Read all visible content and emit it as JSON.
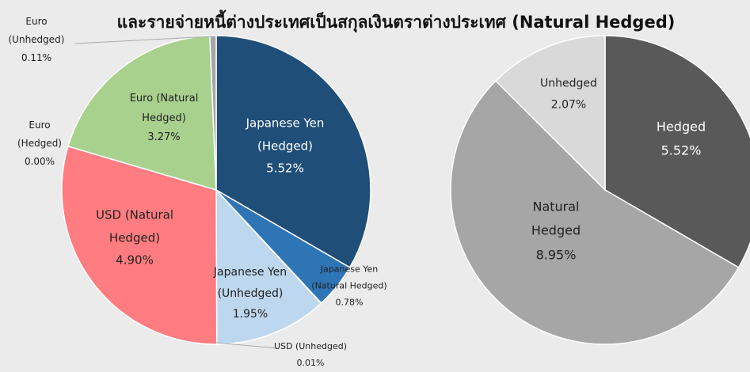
{
  "title": "และรายจ่ายหนี้ต่างประเทศเป็นสกุลเงินตราต่างประเทศ (Natural Hedged)",
  "chart_data": [
    {
      "type": "pie",
      "categories": [
        "Japanese Yen (Hedged)",
        "Japanese Yen (Natural Hedged)",
        "USD (Unhedged)",
        "Japanese Yen (Unhedged)",
        "USD (Natural Hedged)",
        "Euro (Hedged)",
        "Euro (Natural Hedged)",
        "Euro (Unhedged)"
      ],
      "values": [
        5.52,
        0.78,
        0.01,
        1.95,
        4.9,
        0.0,
        3.27,
        0.11
      ],
      "value_labels": [
        "5.52%",
        "0.78%",
        "0.01%",
        "1.95%",
        "4.90%",
        "0.00%",
        "3.27%",
        "0.11%"
      ],
      "colors": [
        "#1f4e79",
        "#2e75b6",
        "#7f7f7f",
        "#bdd7ee",
        "#ff7c80",
        "#70ad47",
        "#a9d18e",
        "#a6a6a6"
      ]
    },
    {
      "type": "pie",
      "categories": [
        "Hedged",
        "Natural Hedged",
        "Unhedged"
      ],
      "values": [
        5.52,
        8.95,
        2.07
      ],
      "value_labels": [
        "5.52%",
        "8.95%",
        "2.07%"
      ],
      "colors": [
        "#595959",
        "#a6a6a6",
        "#d9d9d9"
      ]
    }
  ]
}
